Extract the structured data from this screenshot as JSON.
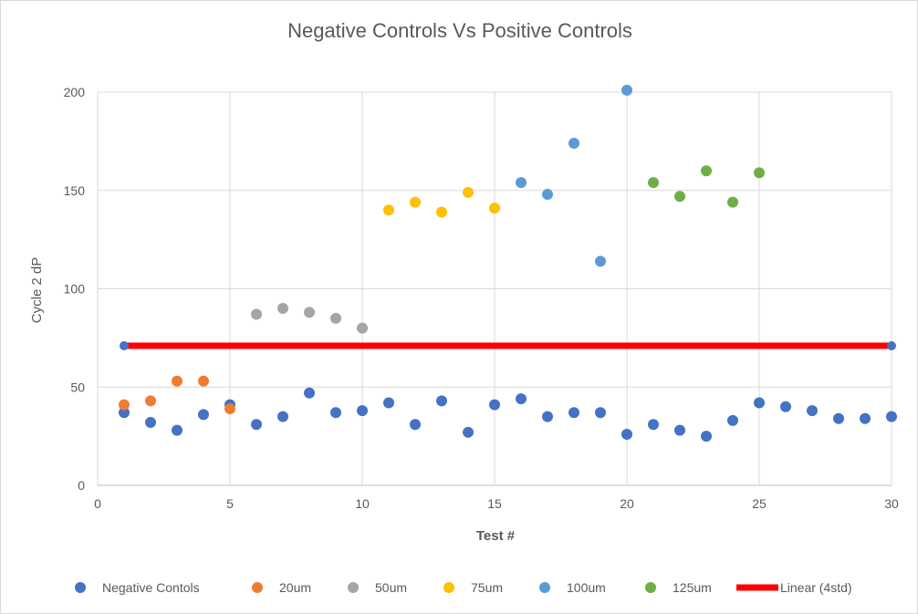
{
  "chart_data": {
    "type": "scatter",
    "title": "Negative Controls Vs Positive Controls",
    "xlabel": "Test #",
    "ylabel": "Cycle 2 dP",
    "xlim": [
      0,
      30
    ],
    "ylim": [
      0,
      200
    ],
    "xticks": [
      0,
      5,
      10,
      15,
      20,
      25,
      30
    ],
    "yticks": [
      0,
      50,
      100,
      150,
      200
    ],
    "grid": true,
    "legend_position": "bottom",
    "series": [
      {
        "name": "Negative Contols",
        "color": "#4472C4",
        "marker": "circle",
        "x": [
          1,
          2,
          3,
          4,
          5,
          6,
          7,
          8,
          9,
          10,
          11,
          12,
          13,
          14,
          15,
          16,
          17,
          18,
          19,
          20,
          21,
          22,
          23,
          24,
          25,
          26,
          27,
          28,
          29,
          30
        ],
        "y": [
          37,
          32,
          28,
          36,
          41,
          31,
          35,
          47,
          37,
          38,
          42,
          31,
          43,
          27,
          41,
          44,
          35,
          37,
          37,
          26,
          31,
          28,
          25,
          33,
          42,
          40,
          38,
          34,
          34,
          35
        ]
      },
      {
        "name": "20um",
        "color": "#ED7D31",
        "marker": "circle",
        "x": [
          1,
          2,
          3,
          4,
          5
        ],
        "y": [
          41,
          43,
          53,
          53,
          39
        ]
      },
      {
        "name": "50um",
        "color": "#A5A5A5",
        "marker": "circle",
        "x": [
          6,
          7,
          8,
          9,
          10
        ],
        "y": [
          87,
          90,
          88,
          85,
          80
        ]
      },
      {
        "name": "75um",
        "color": "#FFC000",
        "marker": "circle",
        "x": [
          11,
          12,
          13,
          14,
          15
        ],
        "y": [
          140,
          144,
          139,
          149,
          141
        ]
      },
      {
        "name": "100um",
        "color": "#5B9BD5",
        "marker": "circle",
        "x": [
          16,
          17,
          18,
          19,
          20
        ],
        "y": [
          154,
          148,
          174,
          114,
          201
        ]
      },
      {
        "name": "125um",
        "color": "#70AD47",
        "marker": "circle",
        "x": [
          21,
          22,
          23,
          24,
          25
        ],
        "y": [
          154,
          147,
          160,
          144,
          159
        ]
      },
      {
        "name": "Linear (4std)",
        "color": "#FF0000",
        "marker": "line",
        "x": [
          1,
          2,
          3,
          4,
          5,
          6,
          7,
          8,
          9,
          10,
          11,
          12,
          13,
          14,
          15,
          16,
          17,
          18,
          19,
          20,
          21,
          22,
          23,
          24,
          25,
          26,
          27,
          28,
          29,
          30
        ],
        "y": [
          71,
          71,
          71,
          71,
          71,
          71,
          71,
          71,
          71,
          71,
          71,
          71,
          71,
          71,
          71,
          71,
          71,
          71,
          71,
          71,
          71,
          71,
          71,
          71,
          71,
          71,
          71,
          71,
          71,
          71
        ]
      }
    ]
  }
}
